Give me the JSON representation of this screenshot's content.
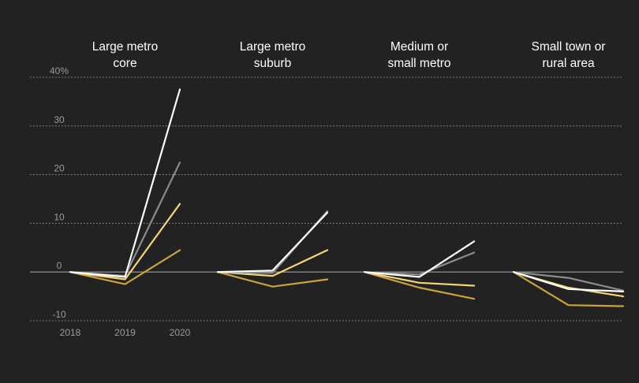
{
  "chart_data": {
    "type": "line",
    "x": [
      "2018",
      "2019",
      "2020"
    ],
    "ylim": [
      -10,
      40
    ],
    "y_ticks": [
      -10,
      0,
      10,
      20,
      30,
      40
    ],
    "y_tick_labels": [
      "-10",
      "0",
      "10",
      "20",
      "30",
      "40%"
    ],
    "grid": true,
    "series_colors": [
      "#ffffff",
      "#8c8c8c",
      "#f2d675",
      "#c9a33f"
    ],
    "panels": [
      {
        "title_lines": [
          "Large metro",
          "core"
        ],
        "series": [
          {
            "values": [
              0,
              -1.0,
              37.5
            ]
          },
          {
            "values": [
              0,
              -0.8,
              22.5
            ]
          },
          {
            "values": [
              0,
              -1.5,
              14.0
            ]
          },
          {
            "values": [
              0,
              -2.5,
              4.5
            ]
          }
        ]
      },
      {
        "title_lines": [
          "Large metro",
          "suburb"
        ],
        "series": [
          {
            "values": [
              0,
              0.3,
              12.2
            ]
          },
          {
            "values": [
              0,
              -0.2,
              12.5
            ]
          },
          {
            "values": [
              0,
              -0.8,
              4.5
            ]
          },
          {
            "values": [
              0,
              -3.0,
              -1.5
            ]
          }
        ]
      },
      {
        "title_lines": [
          "Medium or",
          "small metro"
        ],
        "series": [
          {
            "values": [
              0,
              -1.0,
              6.3
            ]
          },
          {
            "values": [
              0,
              -0.5,
              4.0
            ]
          },
          {
            "values": [
              0,
              -2.2,
              -2.8
            ]
          },
          {
            "values": [
              0,
              -3.2,
              -5.5
            ]
          }
        ]
      },
      {
        "title_lines": [
          "Small town or",
          "rural area"
        ],
        "series": [
          {
            "values": [
              0,
              -3.5,
              -4.0
            ]
          },
          {
            "values": [
              0,
              -1.2,
              -3.8
            ]
          },
          {
            "values": [
              0,
              -3.2,
              -5.0
            ]
          },
          {
            "values": [
              0,
              -6.8,
              -7.0
            ]
          }
        ]
      }
    ]
  }
}
